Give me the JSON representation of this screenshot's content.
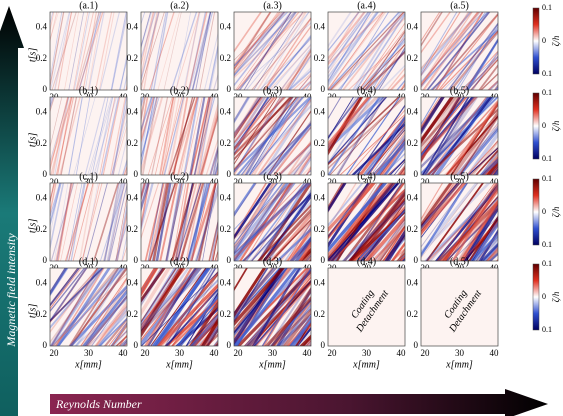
{
  "y_arrow_label": "Magnetic field intensity",
  "x_arrow_label": "Reynolds Number",
  "x_label": "x[mm]",
  "y_label": "t[s]",
  "colorbar_label": "ζ/h",
  "xticks": [
    "20",
    "30",
    "40"
  ],
  "yticks": [
    "0",
    "0.2",
    "0.4"
  ],
  "colorbar_ticks": [
    "0.1",
    "0",
    "0.1"
  ],
  "annotation": [
    "Coating",
    "Detachment"
  ],
  "rows": [
    {
      "panels": [
        "(a.1)",
        "(a.2)",
        "(a.3)",
        "(a.4)",
        "(a.5)"
      ]
    },
    {
      "panels": [
        "(b.1)",
        "(b.2)",
        "(b.3)",
        "(b.4)",
        "(b.5)"
      ]
    },
    {
      "panels": [
        "(c.1)",
        "(c.2)",
        "(c.3)",
        "(c.4)",
        "(c.5)"
      ]
    },
    {
      "panels": [
        "(d.1)",
        "(d.2)",
        "(d.3)",
        "(d.4)",
        "(d.5)"
      ]
    }
  ]
}
